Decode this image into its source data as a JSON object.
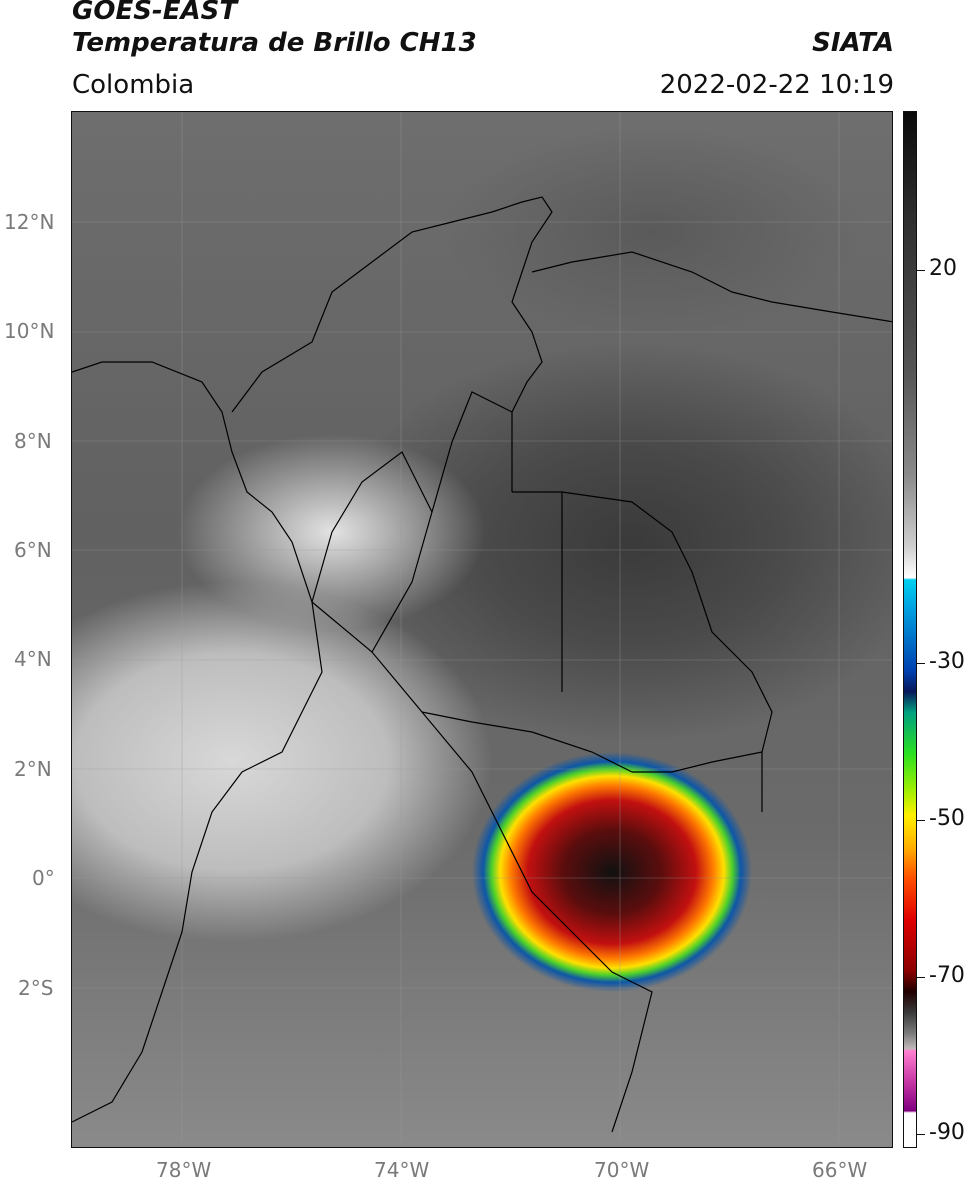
{
  "header": {
    "satellite": "GOES-EAST",
    "product": "Temperatura de Brillo CH13",
    "region": "Colombia",
    "source": "SIATA",
    "datetime": "2022-02-22 10:19"
  },
  "axes": {
    "lat_ticks": [
      "12°N",
      "10°N",
      "8°N",
      "6°N",
      "4°N",
      "2°N",
      "0°",
      "2°S"
    ],
    "lon_ticks": [
      "78°W",
      "74°W",
      "70°W",
      "66°W"
    ]
  },
  "colorbar": {
    "tick_labels": [
      "20",
      "-30",
      "-50",
      "-70",
      "-90"
    ],
    "colors": {
      "warm_top": "#0a0a0a",
      "mid_gray": "#8a8a8a",
      "cyan": "#00d0f0",
      "blue": "#08185a",
      "green": "#2ae020",
      "yellow": "#fff000",
      "red": "#e00000",
      "dark_red": "#200000",
      "magenta": "#c030a0",
      "purple": "#800080"
    }
  }
}
